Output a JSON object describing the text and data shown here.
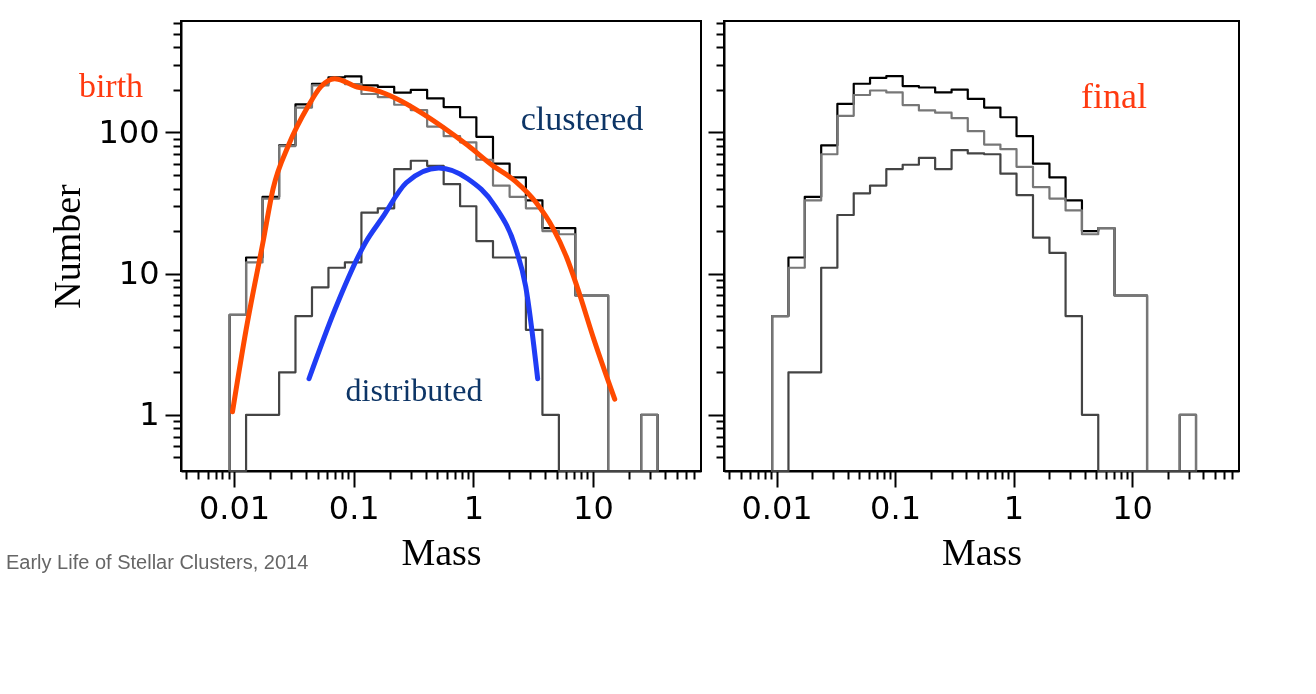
{
  "chart_data": [
    {
      "type": "histogram",
      "xlabel": "Mass",
      "ylabel": "Number",
      "log": "xy",
      "bins": [
        0.00918,
        0.0126,
        0.0173,
        0.0238,
        0.0326,
        0.0448,
        0.0615,
        0.0844,
        0.116,
        0.159,
        0.218,
        0.3,
        0.411,
        0.565,
        0.775,
        1.06,
        1.46,
        2.01,
        2.75,
        3.78,
        5.19,
        7.12,
        9.78,
        13.4,
        18.4,
        25.3,
        34.7
      ],
      "series": [
        {
          "color": "#000000",
          "values": [
            5.1,
            13,
            35,
            81,
            158,
            221,
            245,
            249,
            215,
            210,
            191,
            200,
            174,
            151,
            128,
            93,
            60,
            48,
            33,
            21,
            21,
            7,
            7,
            null,
            null,
            1
          ]
        },
        {
          "color": "#777777",
          "values": [
            5.1,
            12,
            34,
            80,
            150,
            215,
            235,
            220,
            187,
            178,
            157,
            144,
            110,
            94,
            85,
            64,
            42,
            35,
            29,
            20,
            19,
            7,
            7,
            null,
            null,
            1
          ]
        },
        {
          "color": "#444444",
          "values": [
            null,
            1,
            1,
            2,
            5,
            8,
            11,
            12,
            27,
            29,
            55,
            63,
            58,
            43,
            30,
            17,
            13,
            13,
            4,
            1,
            null,
            null,
            null,
            null,
            null,
            null
          ]
        },
        {
          "type": "line",
          "color": "#ff4a00",
          "x": [
            0.0097,
            0.0126,
            0.0174,
            0.0212,
            0.0285,
            0.0412,
            0.0532,
            0.0693,
            0.0844,
            0.103,
            0.151,
            0.226,
            0.357,
            0.566,
            0.897,
            1.42,
            2.25,
            3.33,
            4.63,
            6.03,
            7.36,
            10.2,
            15.2
          ],
          "values": [
            1.05,
            4,
            16.5,
            40,
            81,
            151,
            211,
            240,
            229,
            212,
            199,
            174,
            140,
            108,
            81,
            59,
            45,
            32,
            21,
            13,
            8.1,
            3.4,
            1.29
          ]
        },
        {
          "type": "line",
          "color": "#1f3cf5",
          "x": [
            0.0423,
            0.0693,
            0.125,
            0.174,
            0.275,
            0.514,
            0.897,
            1.52,
            2.25,
            2.74,
            3.45
          ],
          "values": [
            1.8,
            5.5,
            16.5,
            25,
            44,
            56,
            47,
            30,
            15.3,
            8.1,
            1.8
          ]
        }
      ],
      "xlim": [
        0.0036,
        80
      ],
      "ylim": [
        0.4,
        615
      ],
      "xticks": [
        {
          "value": 0.004,
          "label": null
        },
        {
          "value": 0.005,
          "label": null
        },
        {
          "value": 0.006,
          "label": null
        },
        {
          "value": 0.007,
          "label": null
        },
        {
          "value": 0.008,
          "label": null
        },
        {
          "value": 0.009,
          "label": null
        },
        0.01,
        {
          "value": 0.02,
          "label": null
        },
        {
          "value": 0.03,
          "label": null
        },
        {
          "value": 0.04,
          "label": null
        },
        {
          "value": 0.05,
          "label": null
        },
        {
          "value": 0.06,
          "label": null
        },
        {
          "value": 0.07,
          "label": null
        },
        {
          "value": 0.08,
          "label": null
        },
        {
          "value": 0.09,
          "label": null
        },
        0.1,
        {
          "value": 0.2,
          "label": null
        },
        {
          "value": 0.3,
          "label": null
        },
        {
          "value": 0.4,
          "label": null
        },
        {
          "value": 0.5,
          "label": null
        },
        {
          "value": 0.6,
          "label": null
        },
        {
          "value": 0.7,
          "label": null
        },
        {
          "value": 0.8,
          "label": null
        },
        {
          "value": 0.9,
          "label": null
        },
        1,
        {
          "value": 2,
          "label": null
        },
        {
          "value": 3,
          "label": null
        },
        {
          "value": 4,
          "label": null
        },
        {
          "value": 5,
          "label": null
        },
        {
          "value": 6,
          "label": null
        },
        {
          "value": 7,
          "label": null
        },
        {
          "value": 8,
          "label": null
        },
        {
          "value": 9,
          "label": null
        },
        10,
        {
          "value": 20,
          "label": null
        },
        {
          "value": 30,
          "label": null
        },
        {
          "value": 40,
          "label": null
        },
        {
          "value": 50,
          "label": null
        },
        {
          "value": 60,
          "label": null
        },
        {
          "value": 70,
          "label": null
        }
      ],
      "yticks": [
        {
          "value": 0.5,
          "label": null
        },
        {
          "value": 0.6,
          "label": null
        },
        {
          "value": 0.7,
          "label": null
        },
        {
          "value": 0.8,
          "label": null
        },
        {
          "value": 0.9,
          "label": null
        },
        1,
        {
          "value": 2,
          "label": null
        },
        {
          "value": 3,
          "label": null
        },
        {
          "value": 4,
          "label": null
        },
        {
          "value": 5,
          "label": null
        },
        {
          "value": 6,
          "label": null
        },
        {
          "value": 7,
          "label": null
        },
        {
          "value": 8,
          "label": null
        },
        {
          "value": 9,
          "label": null
        },
        10,
        {
          "value": 20,
          "label": null
        },
        {
          "value": 30,
          "label": null
        },
        {
          "value": 40,
          "label": null
        },
        {
          "value": 50,
          "label": null
        },
        {
          "value": 60,
          "label": null
        },
        {
          "value": 70,
          "label": null
        },
        {
          "value": 80,
          "label": null
        },
        {
          "value": 90,
          "label": null
        },
        100,
        {
          "value": 200,
          "label": null
        },
        {
          "value": 300,
          "label": null
        },
        {
          "value": 400,
          "label": null
        },
        {
          "value": 500,
          "label": null
        },
        {
          "value": 600,
          "label": null
        }
      ],
      "annotations": [
        "birth",
        "clustered",
        "distributed",
        "Early Life of Stellar Clusters, 2014"
      ]
    },
    {
      "type": "histogram",
      "xlabel": "Mass",
      "log": "xy",
      "tick_labels": "x",
      "bins": [
        0.00918,
        0.0126,
        0.0173,
        0.0238,
        0.0326,
        0.0448,
        0.0615,
        0.0844,
        0.116,
        0.159,
        0.218,
        0.3,
        0.411,
        0.565,
        0.775,
        1.06,
        1.46,
        2.01,
        2.75,
        3.78,
        5.19,
        7.12,
        9.78,
        13.4,
        18.4,
        25.3,
        34.7
      ],
      "series": [
        {
          "color": "#000000",
          "values": [
            5,
            13,
            35,
            81,
            159,
            221,
            243,
            250,
            213,
            208,
            192,
            201,
            173,
            150,
            128,
            94,
            60,
            48,
            33,
            20,
            21,
            7,
            7,
            null,
            null,
            1
          ]
        },
        {
          "color": "#777777",
          "values": [
            5,
            11,
            33,
            70,
            131,
            184,
            198,
            192,
            156,
            143,
            138,
            126,
            102,
            82,
            76,
            57,
            41,
            34,
            28,
            19,
            21,
            7,
            7,
            null,
            null,
            1
          ]
        },
        {
          "color": "#444444",
          "values": [
            null,
            2,
            2,
            11,
            26,
            37,
            42,
            55,
            59,
            66,
            55,
            75,
            71,
            70,
            51,
            36,
            18,
            14,
            5,
            1,
            null,
            null,
            null,
            null,
            null,
            null
          ]
        }
      ],
      "xlim": [
        0.0036,
        80
      ],
      "ylim": [
        0.4,
        615
      ],
      "xticks": [
        {
          "value": 0.004,
          "label": null
        },
        {
          "value": 0.005,
          "label": null
        },
        {
          "value": 0.006,
          "label": null
        },
        {
          "value": 0.007,
          "label": null
        },
        {
          "value": 0.008,
          "label": null
        },
        {
          "value": 0.009,
          "label": null
        },
        0.01,
        {
          "value": 0.02,
          "label": null
        },
        {
          "value": 0.03,
          "label": null
        },
        {
          "value": 0.04,
          "label": null
        },
        {
          "value": 0.05,
          "label": null
        },
        {
          "value": 0.06,
          "label": null
        },
        {
          "value": 0.07,
          "label": null
        },
        {
          "value": 0.08,
          "label": null
        },
        {
          "value": 0.09,
          "label": null
        },
        0.1,
        {
          "value": 0.2,
          "label": null
        },
        {
          "value": 0.3,
          "label": null
        },
        {
          "value": 0.4,
          "label": null
        },
        {
          "value": 0.5,
          "label": null
        },
        {
          "value": 0.6,
          "label": null
        },
        {
          "value": 0.7,
          "label": null
        },
        {
          "value": 0.8,
          "label": null
        },
        {
          "value": 0.9,
          "label": null
        },
        1,
        {
          "value": 2,
          "label": null
        },
        {
          "value": 3,
          "label": null
        },
        {
          "value": 4,
          "label": null
        },
        {
          "value": 5,
          "label": null
        },
        {
          "value": 6,
          "label": null
        },
        {
          "value": 7,
          "label": null
        },
        {
          "value": 8,
          "label": null
        },
        {
          "value": 9,
          "label": null
        },
        10,
        {
          "value": 20,
          "label": null
        },
        {
          "value": 30,
          "label": null
        },
        {
          "value": 40,
          "label": null
        },
        {
          "value": 50,
          "label": null
        },
        {
          "value": 60,
          "label": null
        },
        {
          "value": 70,
          "label": null
        }
      ],
      "yticks": [
        {
          "value": 0.5,
          "label": null
        },
        {
          "value": 0.6,
          "label": null
        },
        {
          "value": 0.7,
          "label": null
        },
        {
          "value": 0.8,
          "label": null
        },
        {
          "value": 0.9,
          "label": null
        },
        1,
        {
          "value": 2,
          "label": null
        },
        {
          "value": 3,
          "label": null
        },
        {
          "value": 4,
          "label": null
        },
        {
          "value": 5,
          "label": null
        },
        {
          "value": 6,
          "label": null
        },
        {
          "value": 7,
          "label": null
        },
        {
          "value": 8,
          "label": null
        },
        {
          "value": 9,
          "label": null
        },
        10,
        {
          "value": 20,
          "label": null
        },
        {
          "value": 30,
          "label": null
        },
        {
          "value": 40,
          "label": null
        },
        {
          "value": 50,
          "label": null
        },
        {
          "value": 60,
          "label": null
        },
        {
          "value": 70,
          "label": null
        },
        {
          "value": 80,
          "label": null
        },
        {
          "value": 90,
          "label": null
        },
        100,
        {
          "value": 200,
          "label": null
        },
        {
          "value": 300,
          "label": null
        },
        {
          "value": 400,
          "label": null
        },
        {
          "value": 500,
          "label": null
        },
        {
          "value": 600,
          "label": null
        }
      ],
      "annotations": [
        "final"
      ]
    }
  ]
}
